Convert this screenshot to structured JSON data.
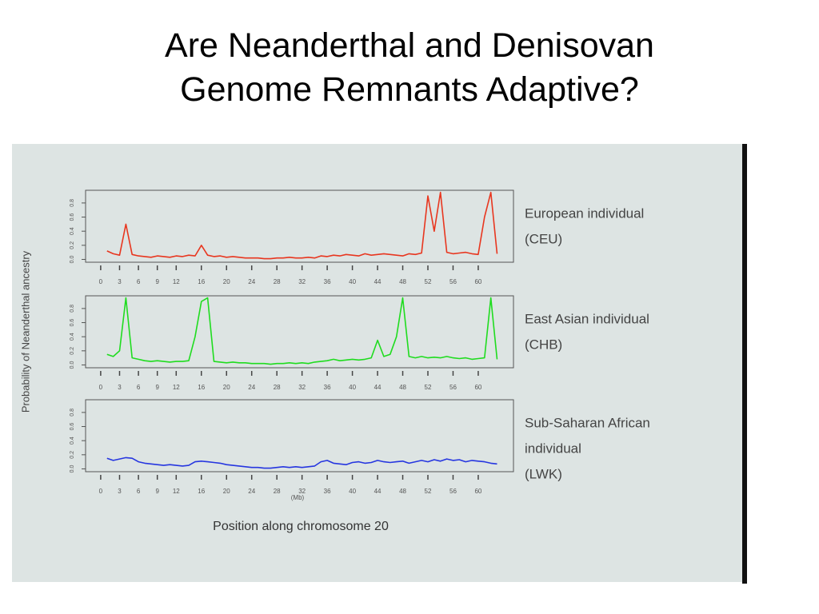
{
  "slide": {
    "title": [
      "Are Neanderthal and Denisovan",
      "Genome Remnants Adaptive?"
    ]
  },
  "figure": {
    "ylabel": "Probability of Neanderthal ancestry",
    "xlabel": "Position along chromosome 20",
    "xunit": "(Mb)"
  },
  "chart_data": [
    {
      "type": "line",
      "title": [
        "European individual",
        "(CEU)"
      ],
      "x": [
        1,
        2,
        3,
        4,
        5,
        6,
        7,
        8,
        9,
        10,
        11,
        12,
        13,
        14,
        15,
        16,
        17,
        18,
        19,
        20,
        21,
        22,
        23,
        24,
        25,
        26,
        27,
        28,
        29,
        30,
        31,
        32,
        33,
        34,
        35,
        36,
        37,
        38,
        39,
        40,
        41,
        42,
        43,
        44,
        45,
        46,
        47,
        48,
        49,
        50,
        51,
        52,
        53,
        54,
        55,
        56,
        57,
        58,
        59,
        60,
        61,
        62,
        63
      ],
      "series": [
        {
          "name": "CEU",
          "color": "#e8361f",
          "values": [
            0.12,
            0.08,
            0.06,
            0.5,
            0.07,
            0.05,
            0.04,
            0.03,
            0.05,
            0.04,
            0.03,
            0.05,
            0.04,
            0.06,
            0.05,
            0.2,
            0.06,
            0.04,
            0.05,
            0.03,
            0.04,
            0.03,
            0.02,
            0.02,
            0.02,
            0.01,
            0.01,
            0.02,
            0.02,
            0.03,
            0.02,
            0.02,
            0.03,
            0.02,
            0.05,
            0.04,
            0.06,
            0.05,
            0.07,
            0.06,
            0.05,
            0.08,
            0.06,
            0.07,
            0.08,
            0.07,
            0.06,
            0.05,
            0.08,
            0.07,
            0.09,
            0.9,
            0.4,
            0.95,
            0.1,
            0.08,
            0.09,
            0.1,
            0.08,
            0.07,
            0.6,
            0.95,
            0.08
          ]
        }
      ],
      "xlim": [
        -2.4,
        65.6
      ],
      "xticks": [
        0,
        3,
        6,
        9,
        12,
        16,
        20,
        24,
        28,
        32,
        36,
        40,
        44,
        48,
        52,
        56,
        60
      ],
      "ylim": [
        -0.04,
        0.98
      ],
      "yticks": [
        {
          "value": 0,
          "label": "0.0"
        },
        {
          "value": 0.2,
          "label": "0.2"
        },
        {
          "value": 0.4,
          "label": "0.4"
        },
        {
          "value": 0.6,
          "label": "0.6"
        },
        {
          "value": 0.8,
          "label": "0.8"
        }
      ]
    },
    {
      "type": "line",
      "title": [
        "East Asian individual",
        "(CHB)"
      ],
      "x": [
        1,
        2,
        3,
        4,
        5,
        6,
        7,
        8,
        9,
        10,
        11,
        12,
        13,
        14,
        15,
        16,
        17,
        18,
        19,
        20,
        21,
        22,
        23,
        24,
        25,
        26,
        27,
        28,
        29,
        30,
        31,
        32,
        33,
        34,
        35,
        36,
        37,
        38,
        39,
        40,
        41,
        42,
        43,
        44,
        45,
        46,
        47,
        48,
        49,
        50,
        51,
        52,
        53,
        54,
        55,
        56,
        57,
        58,
        59,
        60,
        61,
        62,
        63
      ],
      "series": [
        {
          "name": "CHB",
          "color": "#1fdc1f",
          "values": [
            0.15,
            0.12,
            0.2,
            0.95,
            0.1,
            0.08,
            0.06,
            0.05,
            0.06,
            0.05,
            0.04,
            0.05,
            0.05,
            0.06,
            0.4,
            0.9,
            0.95,
            0.05,
            0.04,
            0.03,
            0.04,
            0.03,
            0.03,
            0.02,
            0.02,
            0.02,
            0.01,
            0.02,
            0.02,
            0.03,
            0.02,
            0.03,
            0.02,
            0.04,
            0.05,
            0.06,
            0.08,
            0.06,
            0.07,
            0.08,
            0.07,
            0.08,
            0.1,
            0.35,
            0.12,
            0.15,
            0.4,
            0.95,
            0.12,
            0.1,
            0.12,
            0.1,
            0.11,
            0.1,
            0.12,
            0.1,
            0.09,
            0.1,
            0.08,
            0.09,
            0.1,
            0.95,
            0.08
          ]
        }
      ],
      "xlim": [
        -2.4,
        65.6
      ],
      "xticks": [
        0,
        3,
        6,
        9,
        12,
        16,
        20,
        24,
        28,
        32,
        36,
        40,
        44,
        48,
        52,
        56,
        60
      ],
      "ylim": [
        -0.04,
        0.98
      ],
      "yticks": [
        {
          "value": 0,
          "label": "0.0"
        },
        {
          "value": 0.2,
          "label": "0.2"
        },
        {
          "value": 0.4,
          "label": "0.4"
        },
        {
          "value": 0.6,
          "label": "0.6"
        },
        {
          "value": 0.8,
          "label": "0.8"
        }
      ]
    },
    {
      "type": "line",
      "title": [
        "Sub-Saharan African",
        "individual",
        "(LWK)"
      ],
      "x": [
        1,
        2,
        3,
        4,
        5,
        6,
        7,
        8,
        9,
        10,
        11,
        12,
        13,
        14,
        15,
        16,
        17,
        18,
        19,
        20,
        21,
        22,
        23,
        24,
        25,
        26,
        27,
        28,
        29,
        30,
        31,
        32,
        33,
        34,
        35,
        36,
        37,
        38,
        39,
        40,
        41,
        42,
        43,
        44,
        45,
        46,
        47,
        48,
        49,
        50,
        51,
        52,
        53,
        54,
        55,
        56,
        57,
        58,
        59,
        60,
        61,
        62,
        63
      ],
      "series": [
        {
          "name": "LWK",
          "color": "#2636e0",
          "values": [
            0.15,
            0.12,
            0.14,
            0.16,
            0.15,
            0.1,
            0.08,
            0.07,
            0.06,
            0.05,
            0.06,
            0.05,
            0.04,
            0.05,
            0.1,
            0.11,
            0.1,
            0.09,
            0.08,
            0.06,
            0.05,
            0.04,
            0.03,
            0.02,
            0.02,
            0.01,
            0.01,
            0.02,
            0.03,
            0.02,
            0.03,
            0.02,
            0.03,
            0.04,
            0.1,
            0.12,
            0.08,
            0.07,
            0.06,
            0.09,
            0.1,
            0.08,
            0.09,
            0.12,
            0.1,
            0.09,
            0.1,
            0.11,
            0.08,
            0.1,
            0.12,
            0.1,
            0.13,
            0.11,
            0.14,
            0.12,
            0.13,
            0.1,
            0.12,
            0.11,
            0.1,
            0.08,
            0.07
          ]
        }
      ],
      "xlim": [
        -2.4,
        65.6
      ],
      "xticks": [
        0,
        3,
        6,
        9,
        12,
        16,
        20,
        24,
        28,
        32,
        36,
        40,
        44,
        48,
        52,
        56,
        60
      ],
      "ylim": [
        -0.04,
        0.98
      ],
      "yticks": [
        {
          "value": 0,
          "label": "0.0"
        },
        {
          "value": 0.2,
          "label": "0.2"
        },
        {
          "value": 0.4,
          "label": "0.4"
        },
        {
          "value": 0.6,
          "label": "0.6"
        },
        {
          "value": 0.8,
          "label": "0.8"
        }
      ]
    }
  ]
}
